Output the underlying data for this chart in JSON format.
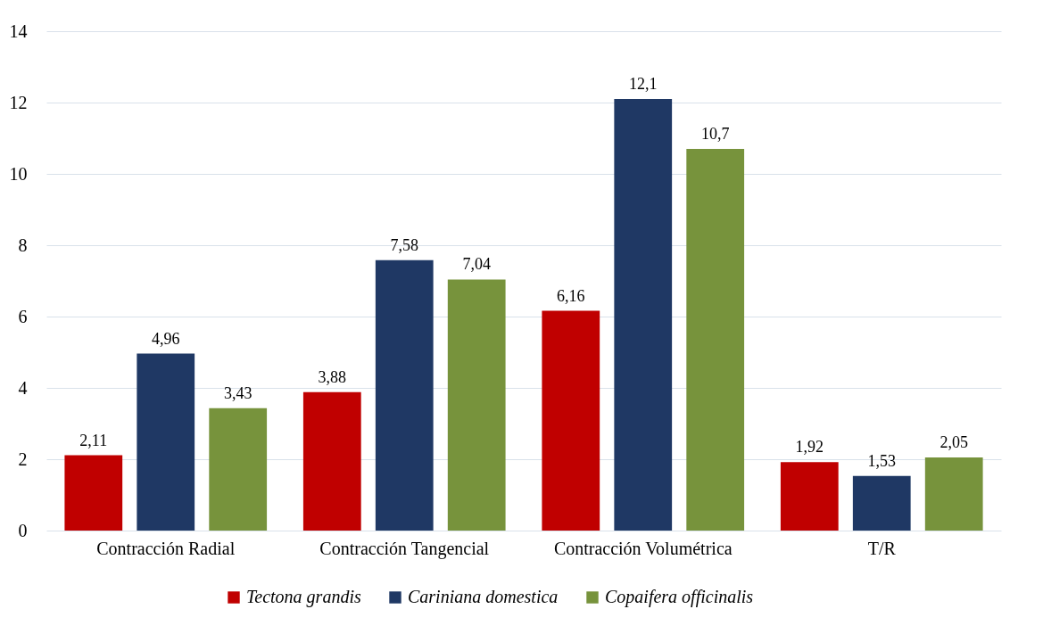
{
  "chart_data": {
    "type": "bar",
    "categories": [
      "Contracción Radial",
      "Contracción Tangencial",
      "Contracción Volumétrica",
      "T/R"
    ],
    "series": [
      {
        "name": "Tectona grandis",
        "color": "#c00000",
        "values": [
          2.11,
          3.88,
          6.16,
          1.92
        ],
        "value_labels": [
          "2,11",
          "3,88",
          "6,16",
          "1,92"
        ]
      },
      {
        "name": "Cariniana domestica",
        "color": "#1f3864",
        "values": [
          4.96,
          7.58,
          12.1,
          1.53
        ],
        "value_labels": [
          "4,96",
          "7,58",
          "12,1",
          "1,53"
        ]
      },
      {
        "name": "Copaifera officinalis",
        "color": "#77933c",
        "values": [
          3.43,
          7.04,
          10.7,
          2.05
        ],
        "value_labels": [
          "3,43",
          "7,04",
          "10,7",
          "2,05"
        ]
      }
    ],
    "ylim": [
      0,
      14
    ],
    "yticks": [
      0,
      2,
      4,
      6,
      8,
      10,
      12,
      14
    ],
    "grid": "y",
    "legend": "bottom"
  }
}
